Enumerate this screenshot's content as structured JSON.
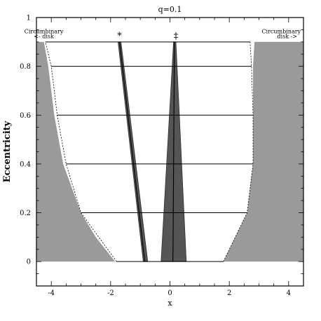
{
  "chart_data": {
    "type": "area",
    "title": "q=0.1",
    "xlabel": "x",
    "ylabel": "Eccentricity",
    "xlim": [
      -4.5,
      4.5
    ],
    "ylim": [
      -0.1,
      1.0
    ],
    "x_ticks": [
      {
        "value": -4,
        "label": "-4"
      },
      {
        "value": -2,
        "label": "-2"
      },
      {
        "value": 0,
        "label": "0"
      },
      {
        "value": 2,
        "label": "2"
      },
      {
        "value": 4,
        "label": "4"
      }
    ],
    "y_ticks": [
      {
        "value": 0,
        "label": "0"
      },
      {
        "value": 0.2,
        "label": "0.2"
      },
      {
        "value": 0.4,
        "label": "0.4"
      },
      {
        "value": 0.6,
        "label": "0.6"
      },
      {
        "value": 0.8,
        "label": "0.8"
      },
      {
        "value": 1,
        "label": "1"
      }
    ],
    "minor_x_step": 0.5,
    "minor_y_step": 0.05,
    "eccentricity_levels": [
      0,
      0.2,
      0.4,
      0.6,
      0.8,
      0.9
    ],
    "level_x_extent": {
      "left": [
        [
          0,
          -1.8
        ],
        [
          0.2,
          -3.0
        ],
        [
          0.4,
          -3.5
        ],
        [
          0.6,
          -3.8
        ],
        [
          0.8,
          -4.0
        ],
        [
          0.9,
          -4.2
        ]
      ],
      "right": [
        [
          0,
          1.8
        ],
        [
          0.2,
          2.6
        ],
        [
          0.4,
          2.8
        ],
        [
          0.6,
          2.8
        ],
        [
          0.8,
          2.75
        ],
        [
          0.9,
          2.7
        ]
      ]
    },
    "regions": [
      {
        "name": "left-circumbinary-region",
        "fill": "#9a9a9a",
        "points": [
          [
            -4.5,
            0
          ],
          [
            -1.85,
            0
          ],
          [
            -2.5,
            0.1
          ],
          [
            -3.0,
            0.2
          ],
          [
            -3.6,
            0.4
          ],
          [
            -3.9,
            0.6
          ],
          [
            -4.1,
            0.8
          ],
          [
            -4.25,
            0.9
          ],
          [
            -4.5,
            0.9
          ]
        ]
      },
      {
        "name": "right-circumbinary-region",
        "fill": "#9a9a9a",
        "points": [
          [
            4.5,
            0
          ],
          [
            1.8,
            0
          ],
          [
            2.2,
            0.1
          ],
          [
            2.6,
            0.2
          ],
          [
            2.8,
            0.4
          ],
          [
            2.8,
            0.6
          ],
          [
            2.8,
            0.8
          ],
          [
            2.85,
            0.9
          ],
          [
            4.5,
            0.9
          ]
        ]
      },
      {
        "name": "primary-stability-wedge",
        "fill": "#555555",
        "points": [
          [
            -0.9,
            0
          ],
          [
            -0.75,
            0
          ],
          [
            -1.65,
            0.9
          ],
          [
            -1.75,
            0.9
          ]
        ]
      },
      {
        "name": "secondary-stability-wedge",
        "fill": "#555555",
        "points": [
          [
            -0.3,
            0
          ],
          [
            0.55,
            0
          ],
          [
            0.2,
            0.9
          ],
          [
            0.12,
            0.9
          ]
        ]
      }
    ],
    "center_lines": [
      {
        "name": "primary-center-line",
        "points": [
          [
            -0.85,
            0
          ],
          [
            -1.7,
            0.9
          ]
        ]
      },
      {
        "name": "secondary-center-line",
        "points": [
          [
            0.1,
            0
          ],
          [
            0.15,
            0.9
          ]
        ]
      }
    ],
    "annotations": [
      {
        "name": "star-marker",
        "text": "*",
        "x": -1.7,
        "y": 0.93
      },
      {
        "name": "secondary-marker",
        "text": "‡",
        "x": 0.2,
        "y": 0.93
      },
      {
        "name": "left-disk-label-1",
        "text": "Circumbinary",
        "x": -4.25,
        "y": 0.935
      },
      {
        "name": "left-disk-label-2",
        "text": "<- disk",
        "x": -4.25,
        "y": 0.915
      },
      {
        "name": "right-disk-label-1",
        "text": "Circumbinary",
        "x": 3.75,
        "y": 0.935
      },
      {
        "name": "right-disk-label-2",
        "text": "disk ->",
        "x": 3.95,
        "y": 0.915
      }
    ]
  }
}
